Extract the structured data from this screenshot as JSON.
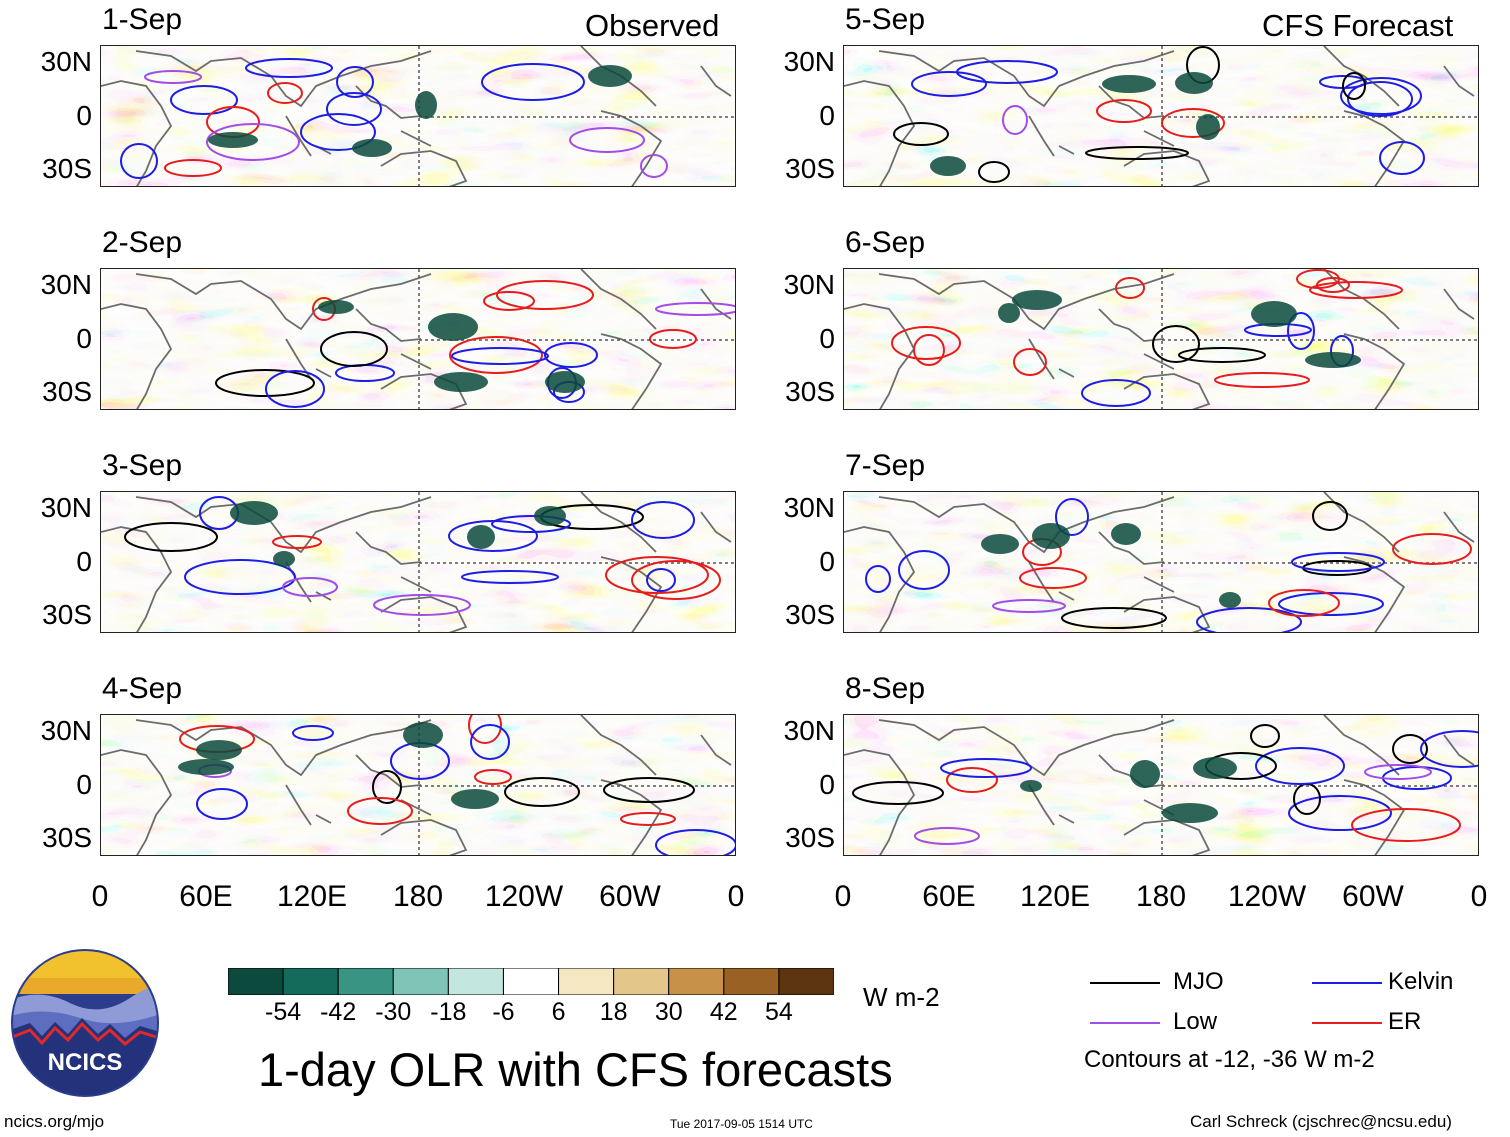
{
  "header": {
    "left_title": "Observed",
    "right_title": "CFS Forecast"
  },
  "panels_left": [
    {
      "date": "1-Sep"
    },
    {
      "date": "2-Sep"
    },
    {
      "date": "3-Sep"
    },
    {
      "date": "4-Sep"
    }
  ],
  "panels_right": [
    {
      "date": "5-Sep"
    },
    {
      "date": "6-Sep"
    },
    {
      "date": "7-Sep"
    },
    {
      "date": "8-Sep"
    }
  ],
  "lat_ticks": [
    "30N",
    "0",
    "30S"
  ],
  "lon_ticks": [
    "0",
    "60E",
    "120E",
    "180",
    "120W",
    "60W",
    "0"
  ],
  "colorbar": {
    "labels": [
      "-54",
      "-42",
      "-30",
      "-18",
      "-6",
      "6",
      "18",
      "30",
      "42",
      "54"
    ],
    "colors": [
      "#0b4a3c",
      "#146b5c",
      "#3a9484",
      "#7fc4b6",
      "#c3e6de",
      "#ffffff",
      "#f6e7c3",
      "#e3c68a",
      "#c8914a",
      "#9a6124",
      "#5c3410"
    ],
    "units": "W m-2"
  },
  "main_title": "1-day OLR with CFS forecasts",
  "legend": {
    "items": [
      {
        "label": "MJO",
        "color": "#000000"
      },
      {
        "label": "Kelvin",
        "color": "#1d1de6"
      },
      {
        "label": "Low",
        "color": "#a24de6"
      },
      {
        "label": "ER",
        "color": "#e61d1d"
      }
    ],
    "note": "Contours at -12, -36 W m-2"
  },
  "footer": {
    "url": "ncics.org/mjo",
    "timestamp": "Tue 2017-09-05 1514 UTC",
    "author": "Carl Schreck (cjschrec@ncsu.edu)",
    "logo_text": "NCICS"
  }
}
